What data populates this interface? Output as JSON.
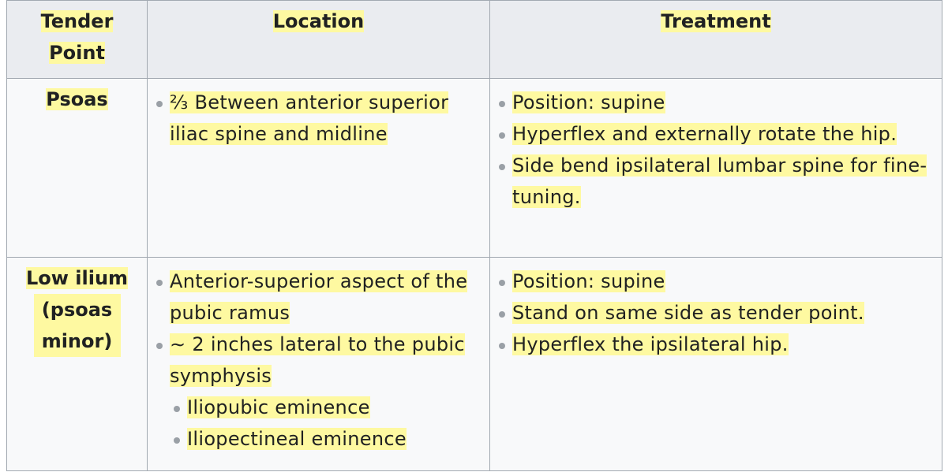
{
  "table": {
    "headers": {
      "tender_point": "Tender Point",
      "location": "Location",
      "treatment": "Treatment"
    },
    "rows": [
      {
        "tender_point": "Psoas",
        "location": [
          "⅔ Between anterior superior iliac spine and midline"
        ],
        "treatment": [
          "Position: supine",
          "Hyperflex and externally rotate the hip.",
          "Side bend ipsilateral lumbar spine for fine-tuning."
        ]
      },
      {
        "tender_point_line1": "Low ilium",
        "tender_point_line2": "(psoas minor)",
        "location": [
          "Anterior-superior aspect of the pubic ramus",
          "∼ 2 inches lateral to the pubic symphysis"
        ],
        "location_sub": [
          "Iliopubic eminence",
          "Iliopectineal eminence"
        ],
        "treatment": [
          "Position: supine",
          "Stand on same side as tender point.",
          "Hyperflex the ipsilateral hip."
        ]
      }
    ]
  },
  "colors": {
    "highlight": "#fef9a1",
    "header_bg": "#eaecf0",
    "cell_bg": "#f8f9fa",
    "border": "#a2a9b1"
  }
}
